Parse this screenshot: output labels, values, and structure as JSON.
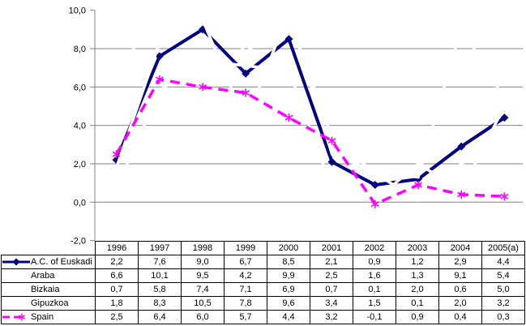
{
  "chart_data": {
    "type": "line",
    "title": "",
    "categories": [
      "1996",
      "1997",
      "1998",
      "1999",
      "2000",
      "2001",
      "2002",
      "2003",
      "2004",
      "2005(a)"
    ],
    "series": [
      {
        "name": "A.C. of Euskadi",
        "values": [
          2.2,
          7.6,
          9.0,
          6.7,
          8.5,
          2.1,
          0.9,
          1.2,
          2.9,
          4.4
        ],
        "color": "#000080",
        "line_style": "solid",
        "marker": "diamond",
        "plotted_visibly": true
      },
      {
        "name": "Araba",
        "values": [
          6.6,
          10.1,
          9.5,
          4.2,
          9.9,
          2.5,
          1.6,
          1.3,
          9.1,
          5.4
        ],
        "color": "#FFFFFF",
        "line_style": "solid",
        "marker": "none",
        "plotted_visibly": false
      },
      {
        "name": "Bizkaia",
        "values": [
          0.7,
          5.8,
          7.4,
          7.1,
          6.9,
          0.7,
          0.1,
          2.0,
          0.6,
          5.0
        ],
        "color": "#FFFFFF",
        "line_style": "solid",
        "marker": "none",
        "plotted_visibly": false
      },
      {
        "name": "Gipuzkoa",
        "values": [
          1.8,
          8.3,
          10.5,
          7.8,
          9.6,
          3.4,
          1.5,
          0.1,
          2.0,
          3.2
        ],
        "color": "#FFFFFF",
        "line_style": "solid",
        "marker": "none",
        "plotted_visibly": false
      },
      {
        "name": "Spain",
        "values": [
          2.5,
          6.4,
          6.0,
          5.7,
          4.4,
          3.2,
          -0.1,
          0.9,
          0.4,
          0.3
        ],
        "color": "#FF00FF",
        "line_style": "dashed",
        "marker": "star",
        "plotted_visibly": true
      }
    ],
    "y_axis": {
      "tick_labels": [
        "10,0",
        "8,0",
        "6,0",
        "4,0",
        "2,0",
        "0,0",
        "-2,0"
      ],
      "tick_values": [
        10,
        8,
        6,
        4,
        2,
        0,
        -2
      ],
      "ylim": [
        -2,
        10
      ]
    },
    "grid": "horizontal-major",
    "legend_position": "table-left-column",
    "decimal_separator": ",",
    "colors": {
      "euskadi_line": "#000080",
      "spain_line": "#FF00FF",
      "hidden_series": "#FFFFFF",
      "gridline": "#848284",
      "axis": "#848284",
      "table_border": "#000000",
      "text": "#000000",
      "background": "#FFFFFF"
    }
  }
}
